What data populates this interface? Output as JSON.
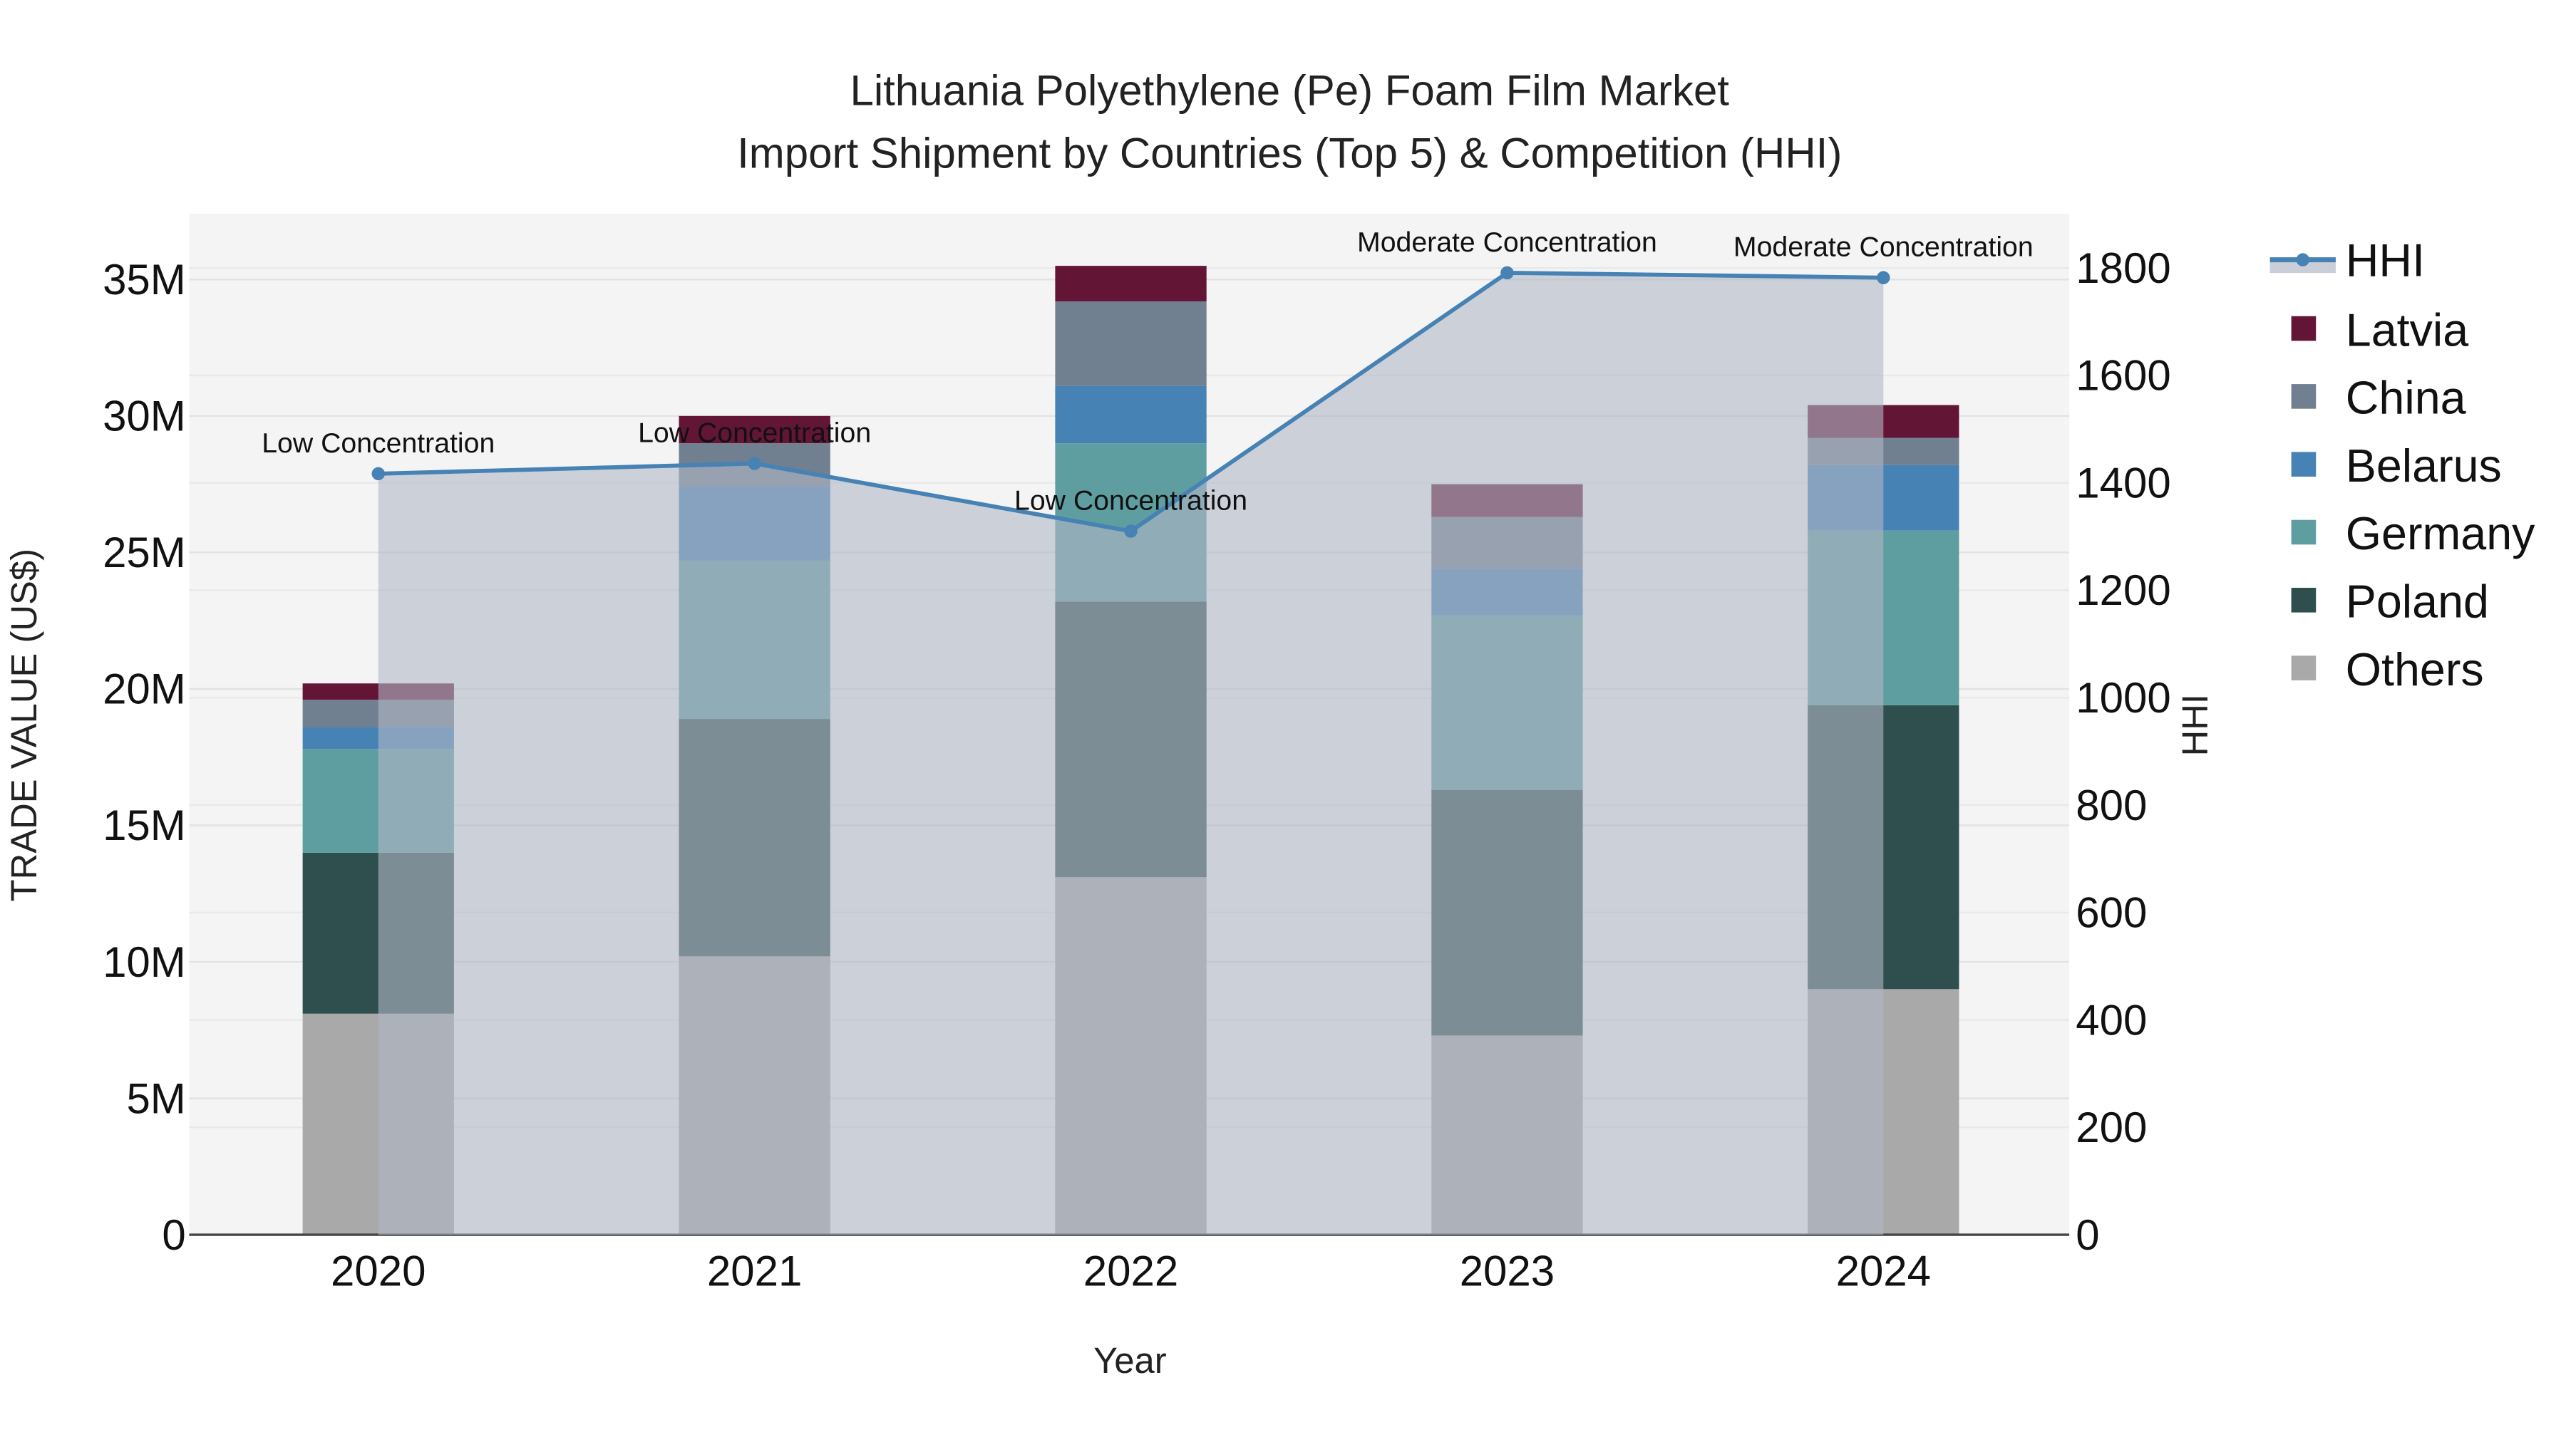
{
  "title_line1": "Lithuania Polyethylene (Pe) Foam Film Market",
  "title_line2": "Import Shipment by Countries (Top 5) & Competition (HHI)",
  "chart_data": {
    "type": "bar",
    "stacked": true,
    "title": "Lithuania Polyethylene (Pe) Foam Film Market — Import Shipment by Countries (Top 5) & Competition (HHI)",
    "xlabel": "Year",
    "ylabel": "TRADE VALUE (US$)",
    "y2label": "HHI",
    "categories": [
      "2020",
      "2021",
      "2022",
      "2023",
      "2024"
    ],
    "ylim": [
      0,
      37000000
    ],
    "y2lim": [
      0,
      1890
    ],
    "yticks": [
      "0",
      "5M",
      "10M",
      "15M",
      "20M",
      "25M",
      "30M",
      "35M"
    ],
    "y2ticks": [
      "0",
      "200",
      "400",
      "600",
      "800",
      "1000",
      "1200",
      "1400",
      "1600",
      "1800"
    ],
    "series": [
      {
        "name": "Others",
        "color": "#A9A9A9",
        "values": [
          8100000,
          10200000,
          13100000,
          7300000,
          9000000
        ]
      },
      {
        "name": "Poland",
        "color": "#2F4F4F",
        "values": [
          5900000,
          8700000,
          10100000,
          9000000,
          10400000
        ]
      },
      {
        "name": "Germany",
        "color": "#5F9EA0",
        "values": [
          3800000,
          5800000,
          5800000,
          6400000,
          6400000
        ]
      },
      {
        "name": "Belarus",
        "color": "#4682B4",
        "values": [
          800000,
          2700000,
          2100000,
          1700000,
          2400000
        ]
      },
      {
        "name": "China",
        "color": "#708090",
        "values": [
          1000000,
          1600000,
          3100000,
          1900000,
          1000000
        ]
      },
      {
        "name": "Latvia",
        "color": "#631536",
        "values": [
          600000,
          1000000,
          1300000,
          1200000,
          1200000
        ]
      }
    ],
    "hhi": {
      "name": "HHI",
      "color": "#4682B4",
      "values": [
        1417,
        1436,
        1310,
        1791,
        1782
      ],
      "annotations": [
        "Low Concentration",
        "Low Concentration",
        "Low Concentration",
        "Moderate Concentration",
        "Moderate Concentration"
      ]
    },
    "legend": [
      "HHI",
      "Latvia",
      "China",
      "Belarus",
      "Germany",
      "Poland",
      "Others"
    ],
    "legend_position": "right",
    "grid": true
  }
}
